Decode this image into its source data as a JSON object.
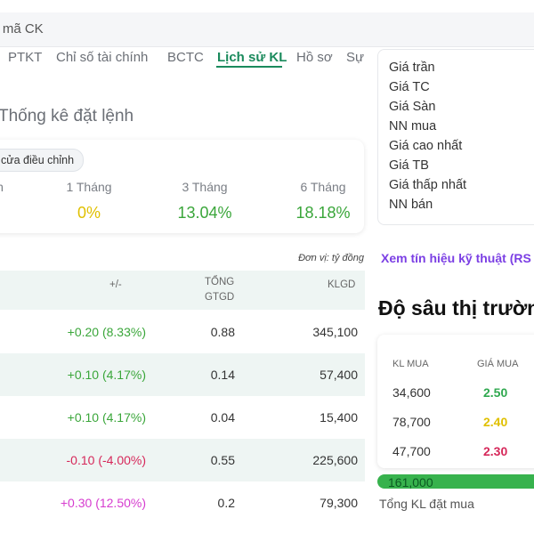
{
  "search": {
    "text": "ìm mã CK"
  },
  "tabs": [
    "PTKT",
    "Chỉ số tài chính",
    "BCTC",
    "Lịch sử KL",
    "Hồ sơ",
    "Sự"
  ],
  "colors": {
    "accent": "#1a8a5c",
    "up": "#3aa63a",
    "down": "#d6285a",
    "ceiling": "#d63ccf",
    "ref": "#e0c000",
    "link": "#7b3fe4"
  },
  "section_title": "Thống kê đặt lệnh",
  "stats": {
    "pill": "cửa điều chỉnh",
    "partial_label": "h",
    "periods": [
      {
        "label": "1 Tháng",
        "value": "0%",
        "color": "#e0c000"
      },
      {
        "label": "3 Tháng",
        "value": "13.04%",
        "color": "#3aa63a"
      },
      {
        "label": "6 Tháng",
        "value": "18.18%",
        "color": "#3aa63a"
      }
    ]
  },
  "unit_note": "Đơn vị: tỷ đồng",
  "table": {
    "headers": {
      "change": "+/-",
      "gtgd_line1": "TỔNG",
      "gtgd_line2": "GTGD",
      "klgd": "KLGD"
    },
    "rows": [
      {
        "change": "+0.20 (8.33%)",
        "change_color": "#3aa63a",
        "gtgd": "0.88",
        "klgd": "345,100"
      },
      {
        "change": "+0.10 (4.17%)",
        "change_color": "#3aa63a",
        "gtgd": "0.14",
        "klgd": "57,400"
      },
      {
        "change": "+0.10 (4.17%)",
        "change_color": "#3aa63a",
        "gtgd": "0.04",
        "klgd": "15,400"
      },
      {
        "change": "-0.10 (-4.00%)",
        "change_color": "#d6285a",
        "gtgd": "0.55",
        "klgd": "225,600"
      },
      {
        "change": "+0.30 (12.50%)",
        "change_color": "#d63ccf",
        "gtgd": "0.2",
        "klgd": "79,300"
      }
    ]
  },
  "legend": [
    "Giá trần",
    "Giá TC",
    "Giá Sàn",
    "NN mua",
    "Giá cao nhất",
    "Giá TB",
    "Giá thấp nhất",
    "NN bán"
  ],
  "signal_link": "Xem tín hiệu kỹ thuật (RS",
  "depth": {
    "title": "Độ sâu thị trườn",
    "headers": {
      "kl_mua": "KL MUA",
      "gia_mua": "GIÁ MUA"
    },
    "rows": [
      {
        "kl": "34,600",
        "price": "2.50",
        "price_color": "#2fa84f"
      },
      {
        "kl": "78,700",
        "price": "2.40",
        "price_color": "#e0c000"
      },
      {
        "kl": "47,700",
        "price": "2.30",
        "price_color": "#d6285a"
      }
    ],
    "bar_value": "161,000",
    "bar_label": "Tổng KL đặt mua"
  }
}
